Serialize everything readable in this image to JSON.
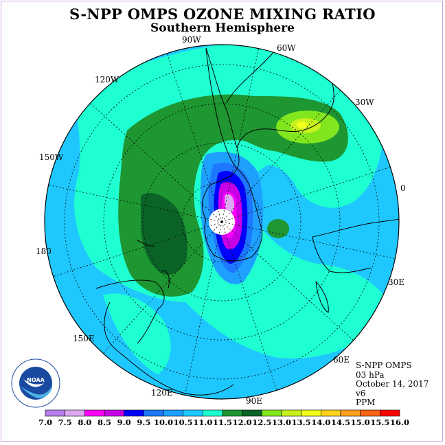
{
  "title": "S-NPP OMPS OZONE MIXING RATIO",
  "subtitle": "Southern Hemisphere",
  "longitude_labels": {
    "w90": "90W",
    "w60": "60W",
    "w30": "30W",
    "e0": "0",
    "e30": "30E",
    "e60": "60E",
    "e90": "90E",
    "e120": "120E",
    "e150": "150E",
    "d180": "180",
    "w150": "150W",
    "w120": "120W"
  },
  "info": {
    "instrument": "S-NPP OMPS",
    "level": "03 hPa",
    "date": "October 14, 2017",
    "version": "v6",
    "units": "PPM"
  },
  "logo_text": "NOAA",
  "colorbar": {
    "ticks": [
      "7.0",
      "7.5",
      "8.0",
      "8.5",
      "9.0",
      "9.5",
      "10.0",
      "10.5",
      "11.0",
      "11.5",
      "12.0",
      "12.5",
      "13.0",
      "13.5",
      "14.0",
      "14.5",
      "15.0",
      "15.5",
      "16.0"
    ],
    "colors": [
      "#b57ee8",
      "#dca8f2",
      "#ff00ff",
      "#c800e6",
      "#0000ff",
      "#1e78ff",
      "#1ea0ff",
      "#1ec8ff",
      "#1effd2",
      "#1e9632",
      "#0a6428",
      "#82e61e",
      "#c8f01e",
      "#f0ff1e",
      "#ffd21e",
      "#ffa01e",
      "#ff6414",
      "#ff0000",
      "#96502d"
    ]
  },
  "colors": {
    "background_field": "#1ec8ff",
    "frame": "#c8a0d8"
  }
}
